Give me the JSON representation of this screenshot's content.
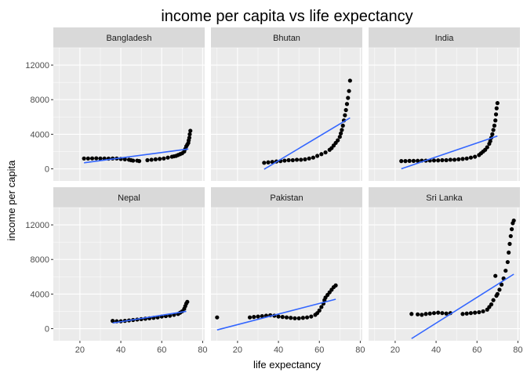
{
  "chart_data": {
    "type": "scatter",
    "title": "income per capita vs life expectancy",
    "xlabel": "life expectancy",
    "ylabel": "income per capita",
    "xlim": [
      7,
      81
    ],
    "ylim": [
      -1400,
      14000
    ],
    "x_ticks": [
      20,
      40,
      60,
      80
    ],
    "y_ticks": [
      0,
      4000,
      8000,
      12000
    ],
    "x_tick_labels": [
      "20",
      "40",
      "60",
      "80"
    ],
    "y_tick_labels": [
      "0",
      "4000",
      "8000",
      "12000"
    ],
    "grid": true,
    "legend": "none",
    "colors": {
      "panel_background": "#ebebeb",
      "grid_major": "#ffffff",
      "strip_background": "#d9d9d9",
      "point": "#000000",
      "trend_line": "#3366ff",
      "tick_label": "#4d4d4d"
    },
    "facets": [
      {
        "name": "Bangladesh",
        "trend": [
          [
            22,
            700
          ],
          [
            73,
            2300
          ]
        ],
        "points": [
          [
            22,
            1200
          ],
          [
            24,
            1200
          ],
          [
            26,
            1210
          ],
          [
            28,
            1220
          ],
          [
            30,
            1200
          ],
          [
            32,
            1190
          ],
          [
            34,
            1180
          ],
          [
            36,
            1200
          ],
          [
            38,
            1200
          ],
          [
            40,
            1150
          ],
          [
            42,
            1100
          ],
          [
            44,
            1050
          ],
          [
            45,
            1000
          ],
          [
            46,
            950
          ],
          [
            48,
            950
          ],
          [
            49,
            900
          ],
          [
            53,
            1000
          ],
          [
            55,
            1050
          ],
          [
            57,
            1100
          ],
          [
            59,
            1150
          ],
          [
            61,
            1200
          ],
          [
            63,
            1300
          ],
          [
            65,
            1400
          ],
          [
            66,
            1450
          ],
          [
            67,
            1500
          ],
          [
            68,
            1600
          ],
          [
            69,
            1700
          ],
          [
            70,
            1800
          ],
          [
            71,
            2000
          ],
          [
            71.5,
            2300
          ],
          [
            72,
            2600
          ],
          [
            72.5,
            2800
          ],
          [
            73,
            3000
          ],
          [
            73.2,
            3300
          ],
          [
            73.5,
            3600
          ],
          [
            73.7,
            4000
          ],
          [
            74,
            4400
          ]
        ]
      },
      {
        "name": "Bhutan",
        "trend": [
          [
            33,
            -50
          ],
          [
            75,
            5900
          ]
        ],
        "points": [
          [
            33,
            700
          ],
          [
            35,
            750
          ],
          [
            37,
            800
          ],
          [
            39,
            850
          ],
          [
            41,
            900
          ],
          [
            43,
            950
          ],
          [
            45,
            1000
          ],
          [
            47,
            1000
          ],
          [
            49,
            1050
          ],
          [
            51,
            1050
          ],
          [
            53,
            1100
          ],
          [
            55,
            1200
          ],
          [
            57,
            1300
          ],
          [
            59,
            1500
          ],
          [
            61,
            1700
          ],
          [
            63,
            1900
          ],
          [
            65,
            2200
          ],
          [
            66,
            2400
          ],
          [
            67,
            2700
          ],
          [
            68,
            3000
          ],
          [
            69,
            3300
          ],
          [
            70,
            3700
          ],
          [
            70.5,
            4100
          ],
          [
            71,
            4500
          ],
          [
            71.5,
            5000
          ],
          [
            72,
            5600
          ],
          [
            72.5,
            6200
          ],
          [
            73,
            6800
          ],
          [
            73.5,
            7500
          ],
          [
            74,
            8200
          ],
          [
            74.5,
            9000
          ],
          [
            75,
            10200
          ]
        ]
      },
      {
        "name": "India",
        "trend": [
          [
            23,
            0
          ],
          [
            70,
            3800
          ]
        ],
        "points": [
          [
            23,
            900
          ],
          [
            25,
            900
          ],
          [
            27,
            920
          ],
          [
            29,
            920
          ],
          [
            31,
            930
          ],
          [
            33,
            950
          ],
          [
            35,
            950
          ],
          [
            37,
            960
          ],
          [
            39,
            970
          ],
          [
            41,
            980
          ],
          [
            43,
            1000
          ],
          [
            45,
            1000
          ],
          [
            47,
            1050
          ],
          [
            49,
            1050
          ],
          [
            51,
            1100
          ],
          [
            53,
            1150
          ],
          [
            55,
            1200
          ],
          [
            57,
            1300
          ],
          [
            59,
            1400
          ],
          [
            61,
            1600
          ],
          [
            62,
            1800
          ],
          [
            63,
            2000
          ],
          [
            64,
            2200
          ],
          [
            65,
            2500
          ],
          [
            66,
            2900
          ],
          [
            66.5,
            3200
          ],
          [
            67,
            3600
          ],
          [
            67.5,
            4000
          ],
          [
            68,
            4500
          ],
          [
            68.5,
            5000
          ],
          [
            69,
            5600
          ],
          [
            69.3,
            6300
          ],
          [
            69.6,
            7000
          ],
          [
            70,
            7600
          ]
        ]
      },
      {
        "name": "Nepal",
        "trend": [
          [
            36,
            650
          ],
          [
            72,
            2000
          ]
        ],
        "points": [
          [
            36,
            900
          ],
          [
            38,
            850
          ],
          [
            40,
            850
          ],
          [
            42,
            900
          ],
          [
            44,
            950
          ],
          [
            46,
            1000
          ],
          [
            48,
            1050
          ],
          [
            50,
            1100
          ],
          [
            52,
            1150
          ],
          [
            54,
            1200
          ],
          [
            56,
            1250
          ],
          [
            58,
            1300
          ],
          [
            60,
            1400
          ],
          [
            62,
            1450
          ],
          [
            64,
            1500
          ],
          [
            66,
            1600
          ],
          [
            68,
            1700
          ],
          [
            69,
            1850
          ],
          [
            70,
            2000
          ],
          [
            71,
            2300
          ],
          [
            71.5,
            2600
          ],
          [
            72,
            2900
          ],
          [
            72.5,
            3100
          ]
        ]
      },
      {
        "name": "Pakistan",
        "trend": [
          [
            10,
            -150
          ],
          [
            68,
            3400
          ]
        ],
        "points": [
          [
            10,
            1300
          ],
          [
            26,
            1300
          ],
          [
            28,
            1350
          ],
          [
            30,
            1400
          ],
          [
            32,
            1450
          ],
          [
            34,
            1500
          ],
          [
            36,
            1550
          ],
          [
            38,
            1500
          ],
          [
            40,
            1400
          ],
          [
            42,
            1350
          ],
          [
            44,
            1300
          ],
          [
            46,
            1250
          ],
          [
            48,
            1200
          ],
          [
            50,
            1200
          ],
          [
            52,
            1250
          ],
          [
            54,
            1300
          ],
          [
            56,
            1400
          ],
          [
            58,
            1600
          ],
          [
            59,
            1800
          ],
          [
            60,
            2100
          ],
          [
            61,
            2500
          ],
          [
            62,
            2900
          ],
          [
            62.5,
            3300
          ],
          [
            63,
            3600
          ],
          [
            64,
            3900
          ],
          [
            65,
            4200
          ],
          [
            66,
            4500
          ],
          [
            67,
            4800
          ],
          [
            68,
            5000
          ]
        ]
      },
      {
        "name": "Sri Lanka",
        "trend": [
          [
            28,
            -1150
          ],
          [
            78,
            6300
          ]
        ],
        "points": [
          [
            28,
            1700
          ],
          [
            31,
            1650
          ],
          [
            33,
            1600
          ],
          [
            35,
            1700
          ],
          [
            37,
            1750
          ],
          [
            39,
            1800
          ],
          [
            41,
            1850
          ],
          [
            43,
            1800
          ],
          [
            45,
            1750
          ],
          [
            47,
            1800
          ],
          [
            53,
            1700
          ],
          [
            55,
            1750
          ],
          [
            57,
            1800
          ],
          [
            59,
            1850
          ],
          [
            61,
            1900
          ],
          [
            63,
            2000
          ],
          [
            65,
            2200
          ],
          [
            66,
            2500
          ],
          [
            67,
            2800
          ],
          [
            68,
            3300
          ],
          [
            69,
            6100
          ],
          [
            69.5,
            3800
          ],
          [
            70,
            4000
          ],
          [
            71,
            4500
          ],
          [
            72,
            5100
          ],
          [
            73,
            5800
          ],
          [
            74,
            6700
          ],
          [
            75,
            7700
          ],
          [
            75.5,
            8800
          ],
          [
            76,
            9800
          ],
          [
            76.5,
            10700
          ],
          [
            77,
            11500
          ],
          [
            77.5,
            12200
          ],
          [
            78,
            12500
          ]
        ]
      }
    ]
  }
}
